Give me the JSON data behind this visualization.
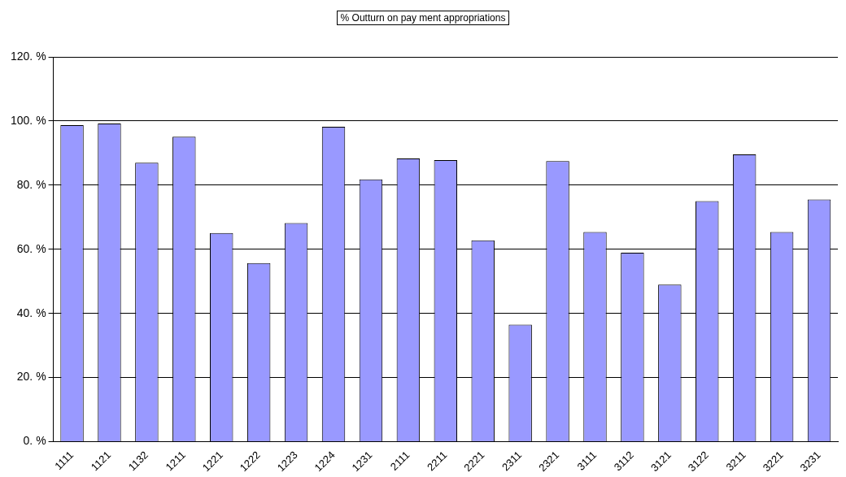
{
  "chart_data": {
    "type": "bar",
    "title": "% Outturn on pay ment appropriations",
    "categories": [
      "1111",
      "1121",
      "1132",
      "1211",
      "1221",
      "1222",
      "1223",
      "1224",
      "1231",
      "2111",
      "2211",
      "2221",
      "2311",
      "2321",
      "3111",
      "3112",
      "3121",
      "3122",
      "3211",
      "3221",
      "3231"
    ],
    "values": [
      98.7,
      99.2,
      87.0,
      95.1,
      65.1,
      55.7,
      68.2,
      98.2,
      81.8,
      88.3,
      87.8,
      62.8,
      36.5,
      87.5,
      65.4,
      58.9,
      49.0,
      75.0,
      89.6,
      65.4,
      75.5
    ],
    "color": "#9999ff",
    "ylim": [
      0,
      120
    ],
    "yticks": [
      {
        "value": 0,
        "label": "0. %"
      },
      {
        "value": 20,
        "label": "20. %"
      },
      {
        "value": 40,
        "label": "40. %"
      },
      {
        "value": 60,
        "label": "60. %"
      },
      {
        "value": 80,
        "label": "80. %"
      },
      {
        "value": 100,
        "label": "100. %"
      },
      {
        "value": 120,
        "label": "120. %"
      }
    ],
    "grid": "y",
    "legend": false
  }
}
